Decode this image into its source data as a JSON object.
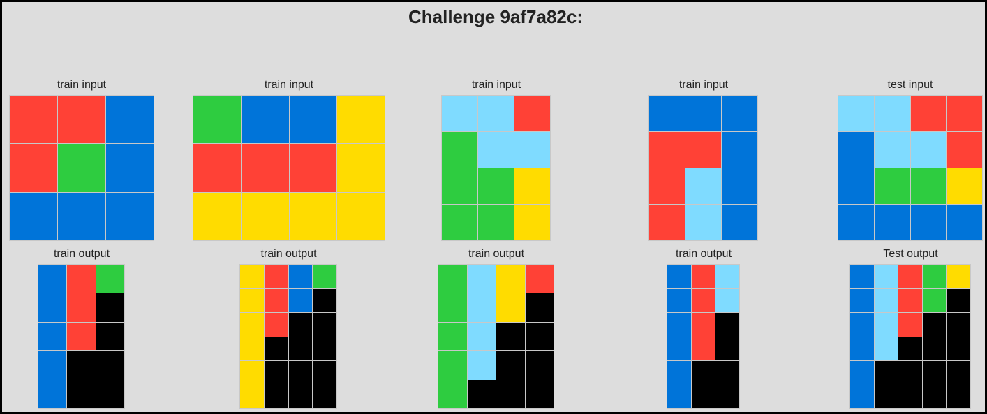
{
  "title": "Challenge 9af7a82c:",
  "colors": {
    "0": "#000000",
    "1": "#0074D9",
    "2": "#FF4136",
    "3": "#2ECC40",
    "4": "#FFDC00",
    "8": "#7FDBFF"
  },
  "panels": [
    {
      "input": {
        "label": "train input",
        "grid": [
          [
            2,
            2,
            1
          ],
          [
            2,
            3,
            1
          ],
          [
            1,
            1,
            1
          ]
        ]
      },
      "output": {
        "label": "train output",
        "grid": [
          [
            1,
            2,
            3
          ],
          [
            1,
            2,
            0
          ],
          [
            1,
            2,
            0
          ],
          [
            1,
            0,
            0
          ],
          [
            1,
            0,
            0
          ]
        ]
      }
    },
    {
      "input": {
        "label": "train input",
        "grid": [
          [
            3,
            1,
            1,
            4
          ],
          [
            2,
            2,
            2,
            4
          ],
          [
            4,
            4,
            4,
            4
          ]
        ]
      },
      "output": {
        "label": "train output",
        "grid": [
          [
            4,
            2,
            1,
            3
          ],
          [
            4,
            2,
            1,
            0
          ],
          [
            4,
            2,
            0,
            0
          ],
          [
            4,
            0,
            0,
            0
          ],
          [
            4,
            0,
            0,
            0
          ],
          [
            4,
            0,
            0,
            0
          ]
        ]
      }
    },
    {
      "input": {
        "label": "train input",
        "grid": [
          [
            8,
            8,
            2
          ],
          [
            3,
            8,
            8
          ],
          [
            3,
            3,
            4
          ],
          [
            3,
            3,
            4
          ]
        ]
      },
      "output": {
        "label": "train output",
        "grid": [
          [
            3,
            8,
            4,
            2
          ],
          [
            3,
            8,
            4,
            0
          ],
          [
            3,
            8,
            0,
            0
          ],
          [
            3,
            8,
            0,
            0
          ],
          [
            3,
            0,
            0,
            0
          ]
        ]
      }
    },
    {
      "input": {
        "label": "train input",
        "grid": [
          [
            1,
            1,
            1
          ],
          [
            2,
            2,
            1
          ],
          [
            2,
            8,
            1
          ],
          [
            2,
            8,
            1
          ]
        ]
      },
      "output": {
        "label": "train output",
        "grid": [
          [
            1,
            2,
            8
          ],
          [
            1,
            2,
            8
          ],
          [
            1,
            2,
            0
          ],
          [
            1,
            2,
            0
          ],
          [
            1,
            0,
            0
          ],
          [
            1,
            0,
            0
          ]
        ]
      }
    },
    {
      "input": {
        "label": "test input",
        "grid": [
          [
            8,
            8,
            2,
            2
          ],
          [
            1,
            8,
            8,
            2
          ],
          [
            1,
            3,
            3,
            4
          ],
          [
            1,
            1,
            1,
            1
          ]
        ]
      },
      "output": {
        "label": "Test output",
        "grid": [
          [
            1,
            8,
            2,
            3,
            4
          ],
          [
            1,
            8,
            2,
            3,
            0
          ],
          [
            1,
            8,
            2,
            0,
            0
          ],
          [
            1,
            8,
            0,
            0,
            0
          ],
          [
            1,
            0,
            0,
            0,
            0
          ],
          [
            1,
            0,
            0,
            0,
            0
          ]
        ]
      }
    }
  ]
}
